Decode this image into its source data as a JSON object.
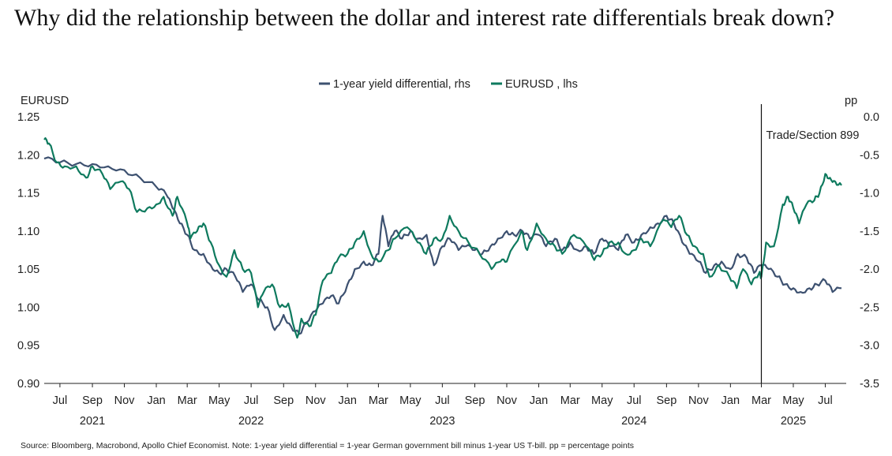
{
  "title": "Why did the relationship between the dollar and interest rate differentials break down?",
  "source_note": "Source: Bloomberg, Macrobond, Apollo Chief Economist. Note: 1-year yield differential = 1-year German government bill minus 1-year US T-bill. pp = percentage points",
  "chart_data": {
    "type": "line",
    "legend_position": "top-center",
    "grid": false,
    "left_axis": {
      "title": "EURUSD",
      "ylim": [
        0.9,
        1.25
      ],
      "ticks": [
        "1.25",
        "1.20",
        "1.15",
        "1.10",
        "1.05",
        "1.00",
        "0.95",
        "0.90"
      ]
    },
    "right_axis": {
      "title": "pp",
      "ylim": [
        -3.5,
        0.0
      ],
      "ticks": [
        "0.0",
        "-0.5",
        "-1.0",
        "-1.5",
        "-2.0",
        "-2.5",
        "-3.0",
        "-3.5"
      ]
    },
    "x_axis": {
      "range": [
        "2021-06-01",
        "2025-08-10"
      ],
      "month_ticks": [
        {
          "label": "Jul",
          "date": "2021-07-01"
        },
        {
          "label": "Sep",
          "date": "2021-09-01"
        },
        {
          "label": "Nov",
          "date": "2021-11-01"
        },
        {
          "label": "Jan",
          "date": "2022-01-01"
        },
        {
          "label": "Mar",
          "date": "2022-03-01"
        },
        {
          "label": "May",
          "date": "2022-05-01"
        },
        {
          "label": "Jul",
          "date": "2022-07-01"
        },
        {
          "label": "Sep",
          "date": "2022-09-01"
        },
        {
          "label": "Nov",
          "date": "2022-11-01"
        },
        {
          "label": "Jan",
          "date": "2023-01-01"
        },
        {
          "label": "Mar",
          "date": "2023-03-01"
        },
        {
          "label": "May",
          "date": "2023-05-01"
        },
        {
          "label": "Jul",
          "date": "2023-07-01"
        },
        {
          "label": "Sep",
          "date": "2023-09-01"
        },
        {
          "label": "Nov",
          "date": "2023-11-01"
        },
        {
          "label": "Jan",
          "date": "2024-01-01"
        },
        {
          "label": "Mar",
          "date": "2024-03-01"
        },
        {
          "label": "May",
          "date": "2024-05-01"
        },
        {
          "label": "Jul",
          "date": "2024-07-01"
        },
        {
          "label": "Sep",
          "date": "2024-09-01"
        },
        {
          "label": "Nov",
          "date": "2024-11-01"
        },
        {
          "label": "Jan",
          "date": "2025-01-01"
        },
        {
          "label": "Mar",
          "date": "2025-03-01"
        },
        {
          "label": "May",
          "date": "2025-05-01"
        },
        {
          "label": "Jul",
          "date": "2025-07-01"
        }
      ],
      "year_labels": [
        {
          "label": "2021",
          "date": "2021-09-01"
        },
        {
          "label": "2022",
          "date": "2022-07-01"
        },
        {
          "label": "2023",
          "date": "2023-07-01"
        },
        {
          "label": "2024",
          "date": "2024-07-01"
        },
        {
          "label": "2025",
          "date": "2025-05-01"
        }
      ]
    },
    "annotation": {
      "text": "Trade/Section 899",
      "date": "2025-03-01"
    },
    "series": [
      {
        "name": "1-year yield differential, rhs",
        "axis": "right",
        "color": "#3d5170",
        "points": [
          [
            "2021-06-01",
            -0.55
          ],
          [
            "2021-07-01",
            -0.6
          ],
          [
            "2021-08-01",
            -0.62
          ],
          [
            "2021-09-01",
            -0.62
          ],
          [
            "2021-10-01",
            -0.65
          ],
          [
            "2021-11-01",
            -0.7
          ],
          [
            "2021-12-01",
            -0.8
          ],
          [
            "2022-01-01",
            -0.92
          ],
          [
            "2022-01-20",
            -1.02
          ],
          [
            "2022-02-01",
            -1.2
          ],
          [
            "2022-02-15",
            -1.4
          ],
          [
            "2022-03-01",
            -1.55
          ],
          [
            "2022-03-15",
            -1.75
          ],
          [
            "2022-04-01",
            -1.8
          ],
          [
            "2022-04-15",
            -1.95
          ],
          [
            "2022-05-01",
            -2.05
          ],
          [
            "2022-05-15",
            -2.0
          ],
          [
            "2022-06-01",
            -2.1
          ],
          [
            "2022-06-15",
            -2.3
          ],
          [
            "2022-07-01",
            -2.2
          ],
          [
            "2022-07-15",
            -2.4
          ],
          [
            "2022-08-01",
            -2.5
          ],
          [
            "2022-08-15",
            -2.8
          ],
          [
            "2022-09-01",
            -2.6
          ],
          [
            "2022-09-15",
            -2.75
          ],
          [
            "2022-10-01",
            -2.85
          ],
          [
            "2022-10-15",
            -2.7
          ],
          [
            "2022-11-01",
            -2.55
          ],
          [
            "2022-11-15",
            -2.45
          ],
          [
            "2022-12-01",
            -2.35
          ],
          [
            "2022-12-15",
            -2.45
          ],
          [
            "2023-01-01",
            -2.2
          ],
          [
            "2023-01-15",
            -2.0
          ],
          [
            "2023-02-01",
            -1.9
          ],
          [
            "2023-02-15",
            -1.95
          ],
          [
            "2023-03-01",
            -1.8
          ],
          [
            "2023-03-09",
            -1.3
          ],
          [
            "2023-03-20",
            -1.7
          ],
          [
            "2023-04-01",
            -1.5
          ],
          [
            "2023-04-15",
            -1.6
          ],
          [
            "2023-05-01",
            -1.5
          ],
          [
            "2023-05-15",
            -1.6
          ],
          [
            "2023-06-01",
            -1.55
          ],
          [
            "2023-06-15",
            -1.95
          ],
          [
            "2023-07-01",
            -1.7
          ],
          [
            "2023-07-15",
            -1.6
          ],
          [
            "2023-08-01",
            -1.75
          ],
          [
            "2023-08-15",
            -1.7
          ],
          [
            "2023-09-01",
            -1.75
          ],
          [
            "2023-09-15",
            -1.8
          ],
          [
            "2023-10-01",
            -1.7
          ],
          [
            "2023-10-15",
            -1.6
          ],
          [
            "2023-11-01",
            -1.5
          ],
          [
            "2023-11-15",
            -1.55
          ],
          [
            "2023-12-01",
            -1.5
          ],
          [
            "2023-12-15",
            -1.6
          ],
          [
            "2024-01-01",
            -1.55
          ],
          [
            "2024-01-15",
            -1.7
          ],
          [
            "2024-02-01",
            -1.6
          ],
          [
            "2024-02-15",
            -1.75
          ],
          [
            "2024-03-01",
            -1.65
          ],
          [
            "2024-03-15",
            -1.75
          ],
          [
            "2024-04-01",
            -1.7
          ],
          [
            "2024-04-15",
            -1.8
          ],
          [
            "2024-05-01",
            -1.6
          ],
          [
            "2024-05-15",
            -1.7
          ],
          [
            "2024-06-01",
            -1.75
          ],
          [
            "2024-06-15",
            -1.55
          ],
          [
            "2024-07-01",
            -1.65
          ],
          [
            "2024-07-15",
            -1.55
          ],
          [
            "2024-08-01",
            -1.45
          ],
          [
            "2024-08-15",
            -1.4
          ],
          [
            "2024-09-01",
            -1.3
          ],
          [
            "2024-09-15",
            -1.4
          ],
          [
            "2024-10-01",
            -1.65
          ],
          [
            "2024-10-15",
            -1.8
          ],
          [
            "2024-11-01",
            -1.9
          ],
          [
            "2024-11-15",
            -2.05
          ],
          [
            "2024-12-01",
            -1.95
          ],
          [
            "2024-12-15",
            -1.9
          ],
          [
            "2025-01-01",
            -2.0
          ],
          [
            "2025-01-15",
            -1.8
          ],
          [
            "2025-02-01",
            -1.85
          ],
          [
            "2025-02-15",
            -2.05
          ],
          [
            "2025-03-01",
            -1.95
          ],
          [
            "2025-03-15",
            -2.0
          ],
          [
            "2025-04-01",
            -2.1
          ],
          [
            "2025-04-15",
            -2.2
          ],
          [
            "2025-05-01",
            -2.25
          ],
          [
            "2025-05-15",
            -2.3
          ],
          [
            "2025-06-01",
            -2.25
          ],
          [
            "2025-06-15",
            -2.2
          ],
          [
            "2025-07-01",
            -2.15
          ],
          [
            "2025-07-15",
            -2.3
          ],
          [
            "2025-08-01",
            -2.25
          ]
        ]
      },
      {
        "name": "EURUSD , lhs",
        "axis": "left",
        "color": "#0e7a5e",
        "points": [
          [
            "2021-06-01",
            1.22
          ],
          [
            "2021-06-10",
            1.215
          ],
          [
            "2021-06-25",
            1.19
          ],
          [
            "2021-07-10",
            1.185
          ],
          [
            "2021-08-01",
            1.185
          ],
          [
            "2021-08-20",
            1.17
          ],
          [
            "2021-09-01",
            1.185
          ],
          [
            "2021-09-20",
            1.175
          ],
          [
            "2021-10-05",
            1.155
          ],
          [
            "2021-10-25",
            1.165
          ],
          [
            "2021-11-10",
            1.155
          ],
          [
            "2021-11-25",
            1.125
          ],
          [
            "2021-12-15",
            1.13
          ],
          [
            "2022-01-01",
            1.135
          ],
          [
            "2022-01-15",
            1.145
          ],
          [
            "2022-02-01",
            1.12
          ],
          [
            "2022-02-10",
            1.145
          ],
          [
            "2022-03-01",
            1.11
          ],
          [
            "2022-03-07",
            1.09
          ],
          [
            "2022-03-20",
            1.1
          ],
          [
            "2022-04-01",
            1.11
          ],
          [
            "2022-04-15",
            1.085
          ],
          [
            "2022-05-01",
            1.055
          ],
          [
            "2022-05-15",
            1.04
          ],
          [
            "2022-05-30",
            1.075
          ],
          [
            "2022-06-15",
            1.05
          ],
          [
            "2022-07-01",
            1.045
          ],
          [
            "2022-07-14",
            1.0
          ],
          [
            "2022-07-25",
            1.02
          ],
          [
            "2022-08-10",
            1.03
          ],
          [
            "2022-08-25",
            1.0
          ],
          [
            "2022-09-10",
            1.005
          ],
          [
            "2022-09-27",
            0.96
          ],
          [
            "2022-10-05",
            0.985
          ],
          [
            "2022-10-20",
            0.975
          ],
          [
            "2022-11-01",
            0.99
          ],
          [
            "2022-11-15",
            1.035
          ],
          [
            "2022-12-01",
            1.045
          ],
          [
            "2022-12-15",
            1.065
          ],
          [
            "2023-01-01",
            1.07
          ],
          [
            "2023-01-15",
            1.085
          ],
          [
            "2023-02-01",
            1.1
          ],
          [
            "2023-02-15",
            1.07
          ],
          [
            "2023-03-01",
            1.06
          ],
          [
            "2023-03-20",
            1.075
          ],
          [
            "2023-04-01",
            1.09
          ],
          [
            "2023-04-25",
            1.105
          ],
          [
            "2023-05-15",
            1.085
          ],
          [
            "2023-05-31",
            1.07
          ],
          [
            "2023-06-15",
            1.09
          ],
          [
            "2023-07-01",
            1.09
          ],
          [
            "2023-07-15",
            1.12
          ],
          [
            "2023-08-01",
            1.1
          ],
          [
            "2023-08-20",
            1.085
          ],
          [
            "2023-09-10",
            1.07
          ],
          [
            "2023-10-03",
            1.05
          ],
          [
            "2023-10-20",
            1.06
          ],
          [
            "2023-11-01",
            1.06
          ],
          [
            "2023-11-29",
            1.1
          ],
          [
            "2023-12-10",
            1.075
          ],
          [
            "2023-12-28",
            1.11
          ],
          [
            "2024-01-15",
            1.09
          ],
          [
            "2024-02-01",
            1.08
          ],
          [
            "2024-02-15",
            1.07
          ],
          [
            "2024-03-08",
            1.095
          ],
          [
            "2024-04-01",
            1.08
          ],
          [
            "2024-04-16",
            1.062
          ],
          [
            "2024-05-01",
            1.07
          ],
          [
            "2024-05-15",
            1.085
          ],
          [
            "2024-06-01",
            1.085
          ],
          [
            "2024-06-15",
            1.07
          ],
          [
            "2024-07-01",
            1.075
          ],
          [
            "2024-07-15",
            1.09
          ],
          [
            "2024-08-01",
            1.08
          ],
          [
            "2024-08-26",
            1.115
          ],
          [
            "2024-09-10",
            1.105
          ],
          [
            "2024-09-25",
            1.12
          ],
          [
            "2024-10-10",
            1.095
          ],
          [
            "2024-10-25",
            1.08
          ],
          [
            "2024-11-10",
            1.07
          ],
          [
            "2024-11-22",
            1.04
          ],
          [
            "2024-12-10",
            1.055
          ],
          [
            "2024-12-30",
            1.04
          ],
          [
            "2025-01-13",
            1.025
          ],
          [
            "2025-01-25",
            1.05
          ],
          [
            "2025-02-10",
            1.03
          ],
          [
            "2025-02-25",
            1.045
          ],
          [
            "2025-03-01",
            1.04
          ],
          [
            "2025-03-10",
            1.085
          ],
          [
            "2025-03-25",
            1.08
          ],
          [
            "2025-04-11",
            1.135
          ],
          [
            "2025-04-21",
            1.145
          ],
          [
            "2025-05-01",
            1.13
          ],
          [
            "2025-05-12",
            1.11
          ],
          [
            "2025-05-26",
            1.135
          ],
          [
            "2025-06-10",
            1.14
          ],
          [
            "2025-06-20",
            1.15
          ],
          [
            "2025-07-01",
            1.175
          ],
          [
            "2025-07-10",
            1.17
          ],
          [
            "2025-07-20",
            1.165
          ],
          [
            "2025-08-01",
            1.16
          ]
        ]
      }
    ]
  }
}
